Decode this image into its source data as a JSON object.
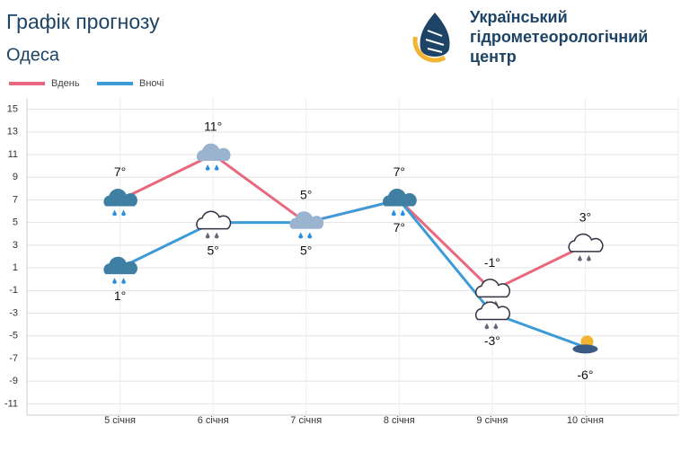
{
  "header": {
    "title": "Графік прогнозу",
    "city": "Одеса",
    "org": [
      "Український",
      "гідрометеорологічний",
      "центр"
    ]
  },
  "chart_data": {
    "type": "line",
    "categories": [
      "5 січня",
      "6 січня",
      "7 січня",
      "8 січня",
      "9 січня",
      "10 січня"
    ],
    "series": [
      {
        "name": "Вдень",
        "color": "#e8697f",
        "values": [
          7,
          11,
          5,
          7,
          -1,
          3
        ],
        "value_labels": [
          "7°",
          "11°",
          "5°",
          "7°",
          "-1°",
          "3°"
        ]
      },
      {
        "name": "Вночі",
        "color": "#3d9bd8",
        "values": [
          1,
          5,
          5,
          7,
          -3,
          -6
        ],
        "value_labels": [
          "1°",
          "5°",
          "5°",
          "7°",
          "-3°",
          "-6°"
        ]
      }
    ],
    "ylim": [
      -12,
      16
    ],
    "yticks": [
      15,
      13,
      11,
      9,
      7,
      5,
      3,
      1,
      -1,
      -3,
      -5,
      -7,
      -9,
      -11
    ],
    "grid": true
  }
}
